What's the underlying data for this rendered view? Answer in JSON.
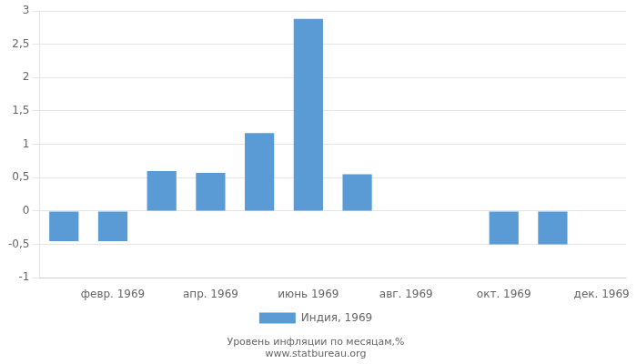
{
  "chart_data": {
    "type": "bar",
    "categories": [
      null,
      "февр. 1969",
      null,
      "апр. 1969",
      null,
      "июнь 1969",
      null,
      "авг. 1969",
      null,
      "окт. 1969",
      null,
      "дек. 1969"
    ],
    "series": [
      {
        "name": "Индия, 1969",
        "color": "#5B9BD5",
        "values": [
          -0.45,
          -0.45,
          0.6,
          0.57,
          1.17,
          2.88,
          0.55,
          0.0,
          0.0,
          -0.5,
          -0.5,
          0.0
        ]
      }
    ],
    "ylim": [
      -1.0,
      3.0
    ],
    "yticks": [
      -1,
      {
        "value": -0.5,
        "label": "-0,5"
      },
      0,
      {
        "value": 0.5,
        "label": "0,5"
      },
      1,
      {
        "value": 1.5,
        "label": "1,5"
      },
      2,
      {
        "value": 2.5,
        "label": "2,5"
      },
      3
    ],
    "grid": true,
    "legend": "bottom",
    "annotations": [
      "Уровень инфляции по месяцам,%",
      "www.statbureau.org"
    ]
  }
}
